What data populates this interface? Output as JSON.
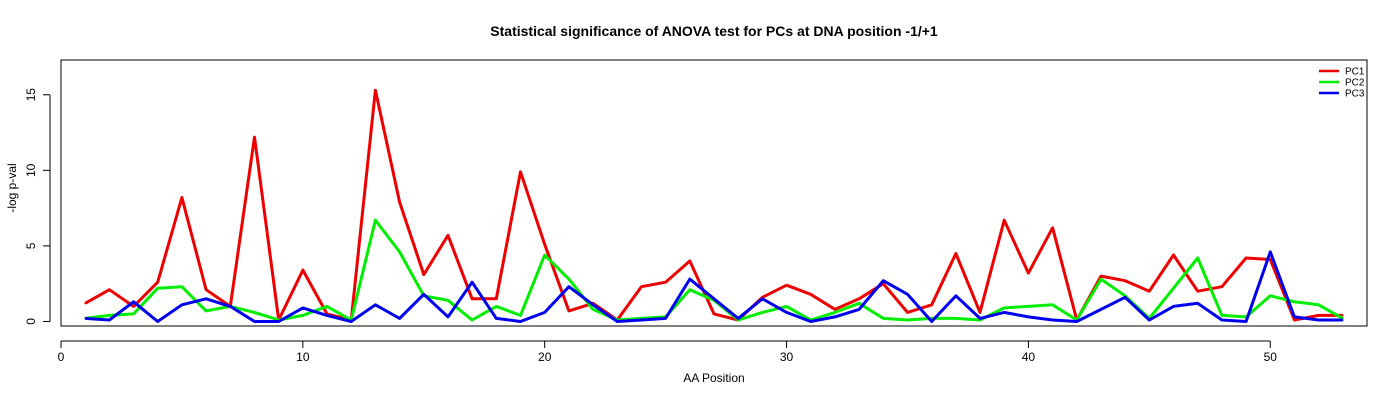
{
  "chart_data": {
    "type": "line",
    "title": "Statistical significance of ANOVA test for PCs at DNA position -1/+1",
    "xlabel": "AA Position",
    "ylabel": "-log p-val",
    "xlim": [
      0,
      54
    ],
    "ylim": [
      -0.3,
      17.3
    ],
    "x_ticks": [
      0,
      10,
      20,
      30,
      40,
      50
    ],
    "y_ticks": [
      0,
      5,
      10,
      15
    ],
    "grid": false,
    "legend_position": "top-right",
    "x": [
      1,
      2,
      3,
      4,
      5,
      6,
      7,
      8,
      9,
      10,
      11,
      12,
      13,
      14,
      15,
      16,
      17,
      18,
      19,
      20,
      21,
      22,
      23,
      24,
      25,
      26,
      27,
      28,
      29,
      30,
      31,
      32,
      33,
      34,
      35,
      36,
      37,
      38,
      39,
      40,
      41,
      42,
      43,
      44,
      45,
      46,
      47,
      48,
      49,
      50,
      51,
      52,
      53
    ],
    "series": [
      {
        "name": "PC1",
        "color": "#ee0000",
        "values": [
          1.2,
          2.1,
          1.0,
          2.6,
          8.2,
          2.1,
          1.0,
          12.2,
          0.1,
          3.4,
          0.5,
          0.1,
          15.3,
          7.9,
          3.1,
          5.7,
          1.5,
          1.5,
          9.9,
          5.1,
          0.7,
          1.2,
          0.1,
          2.3,
          2.6,
          4.0,
          0.5,
          0.1,
          1.6,
          2.4,
          1.8,
          0.8,
          1.5,
          2.5,
          0.6,
          1.1,
          4.5,
          0.6,
          6.7,
          3.2,
          6.2,
          0.1,
          3.0,
          2.7,
          2.0,
          4.4,
          2.0,
          2.3,
          4.2,
          4.1,
          0.1,
          0.4,
          0.4
        ]
      },
      {
        "name": "PC2",
        "color": "#00ee00",
        "values": [
          0.2,
          0.4,
          0.5,
          2.2,
          2.3,
          0.7,
          1.0,
          0.6,
          0.1,
          0.4,
          1.0,
          0.1,
          6.7,
          4.6,
          1.7,
          1.4,
          0.1,
          1.0,
          0.4,
          4.4,
          2.8,
          0.8,
          0.1,
          0.2,
          0.3,
          2.1,
          1.4,
          0.1,
          0.6,
          1.0,
          0.1,
          0.6,
          1.2,
          0.2,
          0.1,
          0.2,
          0.2,
          0.1,
          0.9,
          1.0,
          1.1,
          0.1,
          2.8,
          1.7,
          0.2,
          2.2,
          4.2,
          0.4,
          0.3,
          1.7,
          1.3,
          1.1,
          0.2
        ]
      },
      {
        "name": "PC3",
        "color": "#0000ee",
        "values": [
          0.2,
          0.1,
          1.3,
          0.0,
          1.1,
          1.5,
          1.0,
          0.0,
          0.0,
          0.9,
          0.4,
          0.0,
          1.1,
          0.2,
          1.8,
          0.3,
          2.6,
          0.2,
          0.0,
          0.6,
          2.3,
          1.1,
          0.0,
          0.1,
          0.2,
          2.8,
          1.5,
          0.2,
          1.5,
          0.6,
          0.0,
          0.3,
          0.8,
          2.7,
          1.8,
          0.0,
          1.7,
          0.2,
          0.6,
          0.3,
          0.1,
          0.0,
          0.8,
          1.6,
          0.1,
          1.0,
          1.2,
          0.1,
          0.0,
          4.6,
          0.3,
          0.1,
          0.1
        ]
      }
    ]
  }
}
